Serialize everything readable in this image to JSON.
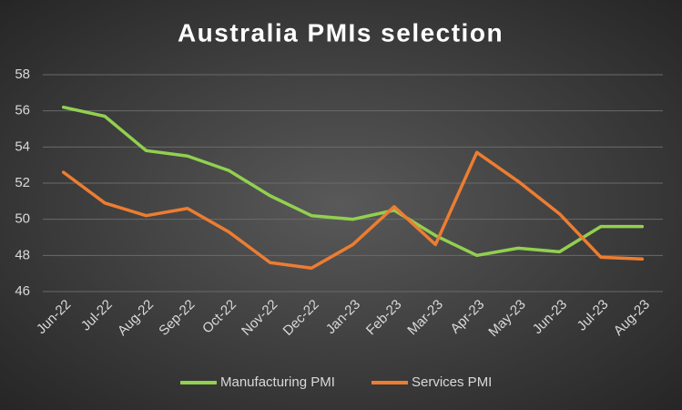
{
  "chart_data": {
    "type": "line",
    "title": "Australia PMIs selection",
    "categories": [
      "Jun-22",
      "Jul-22",
      "Aug-22",
      "Sep-22",
      "Oct-22",
      "Nov-22",
      "Dec-22",
      "Jan-23",
      "Feb-23",
      "Mar-23",
      "Apr-23",
      "May-23",
      "Jun-23",
      "Jul-23",
      "Aug-23"
    ],
    "series": [
      {
        "name": "Manufacturing PMI",
        "color": "#92d050",
        "values": [
          56.2,
          55.7,
          53.8,
          53.5,
          52.7,
          51.3,
          50.2,
          50.0,
          50.5,
          49.1,
          48.0,
          48.4,
          48.2,
          49.6,
          49.6
        ]
      },
      {
        "name": "Services PMI",
        "color": "#ed7d31",
        "values": [
          52.6,
          50.9,
          50.2,
          50.6,
          49.3,
          47.6,
          47.3,
          48.6,
          50.7,
          48.6,
          53.7,
          52.1,
          50.3,
          47.9,
          47.8
        ]
      }
    ],
    "ylim": [
      46,
      58
    ],
    "yticks": [
      46,
      48,
      50,
      52,
      54,
      56,
      58
    ],
    "grid": true,
    "legend": "bottom"
  }
}
